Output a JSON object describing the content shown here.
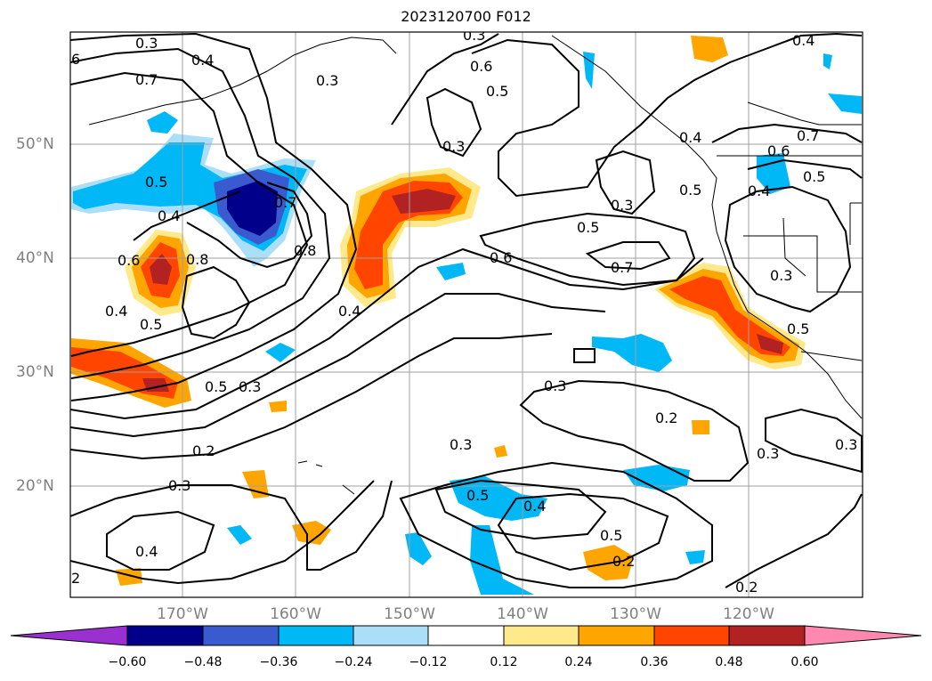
{
  "title": "2023120700 F012",
  "latitude_labels": [
    "50°N",
    "40°N",
    "30°N",
    "20°N"
  ],
  "longitude_labels": [
    "170°W",
    "160°W",
    "150°W",
    "140°W",
    "130°W",
    "120°W"
  ],
  "colorbar": {
    "ticks": [
      "−0.60",
      "−0.48",
      "−0.36",
      "−0.24",
      "−0.12",
      "0.12",
      "0.24",
      "0.36",
      "0.48",
      "0.60"
    ],
    "colors": [
      "#9b30d0",
      "#00008b",
      "#3a5bd0",
      "#00b8f5",
      "#aadff7",
      "#ffffff",
      "#ffe98a",
      "#ffa500",
      "#ff4500",
      "#b22222",
      "#ff88b0"
    ]
  },
  "contour_labels": [
    "0.3",
    "0.4",
    "0.7",
    "0.3",
    "0.6",
    "0.5",
    "0.3",
    "0.4",
    "0.5",
    "0.4",
    "0.7",
    "0.8",
    "0.8",
    "0.6",
    "0.5",
    "0.4",
    "0.5",
    "0.3",
    "0.2",
    "0.3",
    "0.4",
    "0.2",
    "0.3",
    "0.5",
    "0.6",
    "0.7",
    "0.3",
    "0.5",
    "0.3",
    "0.2",
    "0.5",
    "0.4",
    "0.3",
    "0.5",
    "0.2",
    "0.6",
    "0.7",
    "0.5",
    "0.4",
    "0.5",
    "0.3",
    "0.5",
    "0.2",
    "0.3",
    "0.4",
    "0.3",
    "2",
    "6"
  ]
}
